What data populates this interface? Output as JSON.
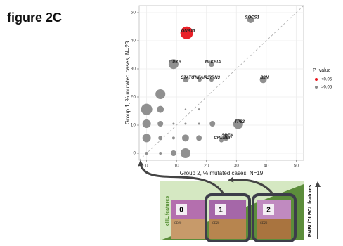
{
  "figure_label": "figure 2C",
  "chart_data": {
    "type": "scatter",
    "x_label": "Group 2, % mutated cases, N=19",
    "y_label": "Group 1, % mutated cases, N=23",
    "xlim": [
      -2.5,
      52.5
    ],
    "ylim": [
      -2.5,
      52.5
    ],
    "xticks": [
      0,
      10,
      20,
      30,
      40,
      50
    ],
    "yticks": [
      0,
      10,
      20,
      30,
      40,
      50
    ],
    "grid": true,
    "legend_title": "P−value",
    "legend_position": "right",
    "series": [
      {
        "name": "<0.05",
        "color": "#e8141c",
        "x": [
          13.4
        ],
        "values": [
          42.8
        ],
        "sizes": [
          9
        ],
        "labels": [
          "GNA13"
        ]
      },
      {
        "name": ">0.05",
        "color": "#8a8a8a",
        "x": [
          34.8,
          9.0,
          21.7,
          13.1,
          17.7,
          21.7,
          39.0,
          30.6,
          26.5,
          25.0,
          4.6,
          0,
          4.6,
          13.0,
          17.5,
          0,
          4.6,
          9.0,
          13.0,
          17.5,
          22.0,
          0,
          4.6,
          9.0,
          13.0,
          17.5,
          0,
          4.6,
          9.0,
          13.0
        ],
        "values": [
          47.5,
          31.7,
          31.7,
          26.2,
          26.2,
          26.2,
          26.2,
          10.4,
          5.7,
          4.6,
          21.0,
          15.6,
          15.6,
          15.6,
          15.6,
          10.5,
          10.5,
          10.5,
          10.5,
          10.5,
          10.5,
          5.4,
          5.4,
          5.4,
          5.4,
          5.4,
          0,
          0,
          0,
          0
        ],
        "sizes": [
          5,
          7,
          4,
          4,
          3,
          3,
          5,
          7,
          5,
          3,
          7,
          8,
          5,
          1.2,
          1.5,
          6,
          4,
          1.5,
          1.5,
          1.5,
          4,
          6,
          3,
          2,
          5,
          4,
          2,
          2,
          4,
          7
        ],
        "labels": [
          "SOCS1",
          "ITPKB",
          "NFKBIA",
          "STAT6",
          "TNFAIP3",
          "LRRN3",
          "B2M",
          "TP53",
          "SPEN",
          "CREBBP",
          null,
          null,
          null,
          null,
          null,
          null,
          null,
          null,
          null,
          null,
          null,
          null,
          null,
          null,
          null,
          null,
          null,
          null,
          null,
          null
        ]
      }
    ]
  },
  "diagram": {
    "left_label": "cHL features",
    "right_label": "PMBL/DLBCL features",
    "panels": [
      {
        "number": "0",
        "stain": "CD20"
      },
      {
        "number": "1",
        "stain": "CD20"
      },
      {
        "number": "2",
        "stain": "CD20"
      }
    ]
  }
}
